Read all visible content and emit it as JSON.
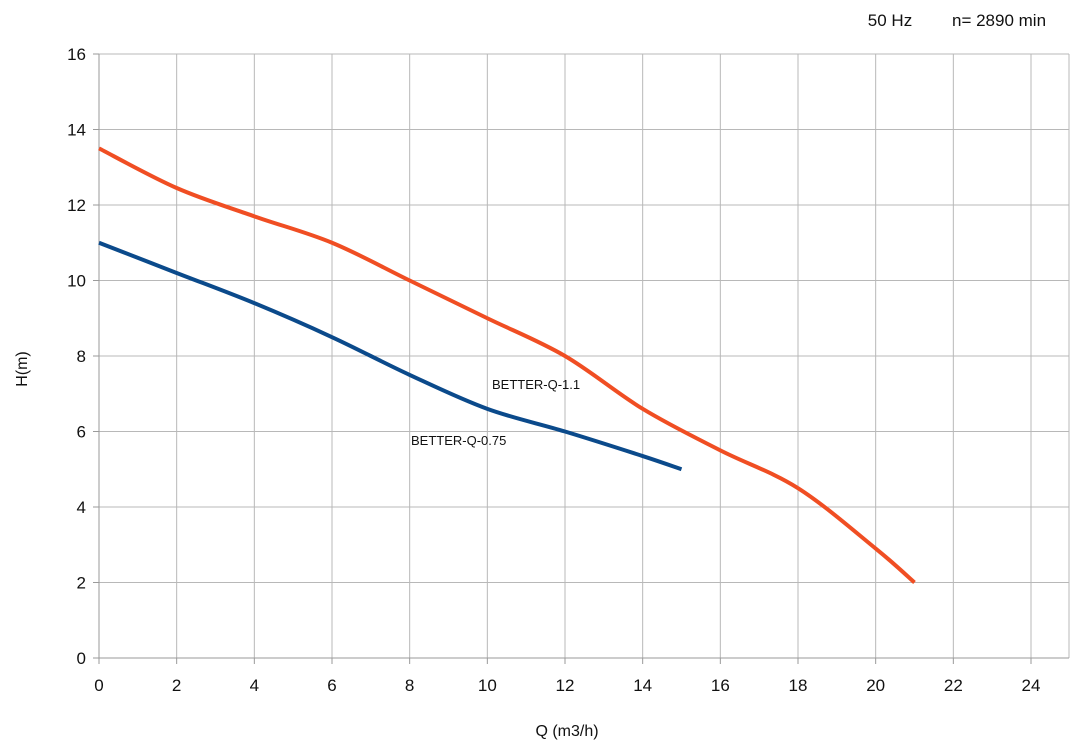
{
  "header": {
    "frequency": "50 Hz",
    "speed": "n= 2890 min"
  },
  "chart_data": {
    "type": "line",
    "title": "",
    "xlabel": "Q (m3/h)",
    "ylabel": "H(m)",
    "xlim": [
      0,
      24
    ],
    "ylim": [
      0,
      16
    ],
    "xticks": [
      0,
      2,
      4,
      6,
      8,
      10,
      12,
      14,
      16,
      18,
      20,
      22,
      24
    ],
    "yticks": [
      0,
      2,
      4,
      6,
      8,
      10,
      12,
      14,
      16
    ],
    "grid": true,
    "legend": "none",
    "series": [
      {
        "name": "BETTER-Q-0.75",
        "color": "#0b4a8b",
        "x": [
          0,
          2,
          4,
          6,
          8,
          10,
          12,
          14,
          15
        ],
        "y": [
          11,
          10.2,
          9.4,
          8.5,
          7.5,
          6.6,
          6.0,
          5.35,
          5.0
        ]
      },
      {
        "name": "BETTER-Q-1.1",
        "color": "#f04e23",
        "x": [
          0,
          2,
          4,
          6,
          8,
          10,
          12,
          14,
          16,
          18,
          20,
          21
        ],
        "y": [
          13.5,
          12.45,
          11.7,
          11.0,
          10.0,
          9.0,
          8.0,
          6.6,
          5.5,
          4.5,
          2.9,
          2.0
        ]
      }
    ]
  }
}
